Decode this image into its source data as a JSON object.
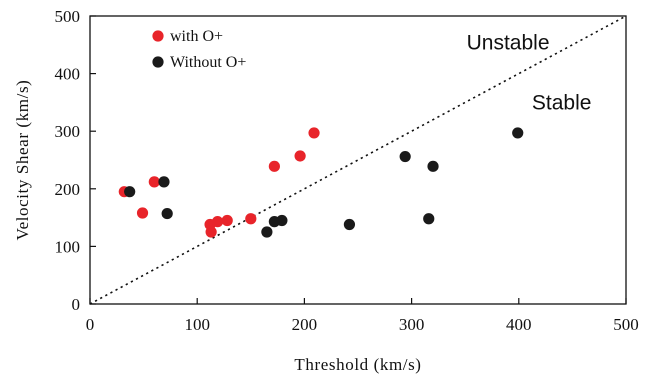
{
  "chart_data": {
    "type": "scatter",
    "title": "",
    "xlabel": "Threshold (km/s)",
    "ylabel": "Velocity Shear (km/s)",
    "xlim": [
      0,
      500
    ],
    "ylim": [
      0,
      500
    ],
    "x_ticks": [
      "0",
      "100",
      "200",
      "300",
      "400",
      "500"
    ],
    "y_ticks": [
      "0",
      "100",
      "200",
      "300",
      "400",
      "500"
    ],
    "grid": false,
    "legend_position": "top-left",
    "reference_line": {
      "style": "dotted",
      "from": [
        0,
        0
      ],
      "to": [
        500,
        500
      ]
    },
    "annotations": [
      {
        "text": "Unstable",
        "x": 390,
        "y": 442
      },
      {
        "text": "Stable",
        "x": 440,
        "y": 338
      }
    ],
    "series": [
      {
        "name": "with O+",
        "color": "#e8242a",
        "points": [
          {
            "x": 32,
            "y": 195
          },
          {
            "x": 49,
            "y": 158
          },
          {
            "x": 60,
            "y": 212
          },
          {
            "x": 112,
            "y": 138
          },
          {
            "x": 113,
            "y": 125
          },
          {
            "x": 119,
            "y": 143
          },
          {
            "x": 128,
            "y": 145
          },
          {
            "x": 150,
            "y": 148
          },
          {
            "x": 172,
            "y": 239
          },
          {
            "x": 196,
            "y": 257
          },
          {
            "x": 209,
            "y": 297
          }
        ]
      },
      {
        "name": "Without O+",
        "color": "#1a1a1a",
        "points": [
          {
            "x": 37,
            "y": 195
          },
          {
            "x": 69,
            "y": 212
          },
          {
            "x": 72,
            "y": 157
          },
          {
            "x": 165,
            "y": 125
          },
          {
            "x": 172,
            "y": 143
          },
          {
            "x": 179,
            "y": 145
          },
          {
            "x": 242,
            "y": 138
          },
          {
            "x": 294,
            "y": 256
          },
          {
            "x": 316,
            "y": 148
          },
          {
            "x": 320,
            "y": 239
          },
          {
            "x": 399,
            "y": 297
          }
        ]
      }
    ]
  }
}
